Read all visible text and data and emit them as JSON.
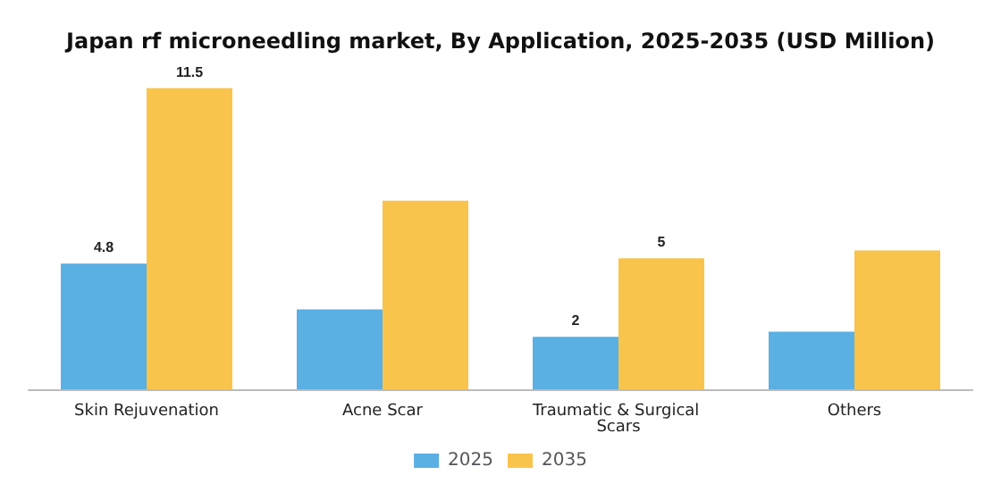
{
  "chart_data": {
    "type": "bar",
    "title": "Japan rf microneedling market, By Application, 2025-2035 (USD Million)",
    "categories": [
      "Skin Rejuvenation",
      "Acne Scar",
      "Traumatic & Surgical Scars",
      "Others"
    ],
    "series": [
      {
        "name": "2025",
        "color": "#5aafe3",
        "values": [
          4.8,
          3.05,
          2,
          2.2
        ],
        "value_labels": [
          "4.8",
          null,
          "2",
          null
        ]
      },
      {
        "name": "2035",
        "color": "#f8c44c",
        "values": [
          11.5,
          7.2,
          5,
          5.3
        ],
        "value_labels": [
          "11.5",
          null,
          "5",
          null
        ]
      }
    ],
    "legend": "bottom"
  }
}
